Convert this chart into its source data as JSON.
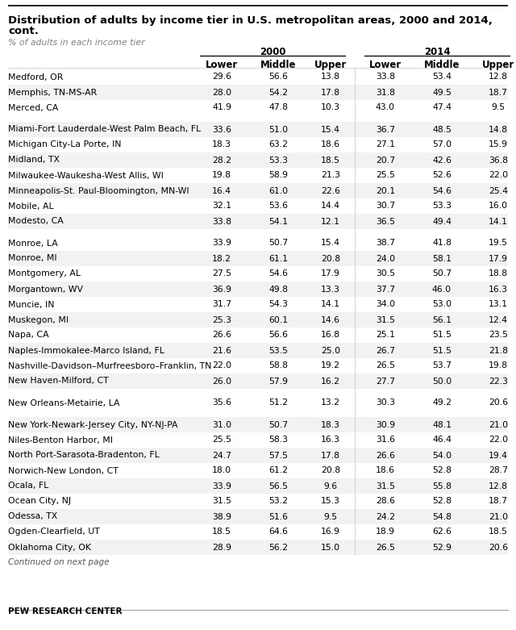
{
  "title_line1": "Distribution of adults by income tier in U.S. metropolitan areas, 2000 and 2014,",
  "title_line2": "cont.",
  "subtitle": "% of adults in each income tier",
  "col_headers_year": [
    "2000",
    "2014"
  ],
  "col_headers_sub": [
    "Lower",
    "Middle",
    "Upper",
    "Lower",
    "Middle",
    "Upper"
  ],
  "rows": [
    [
      "Medford, OR",
      29.6,
      56.6,
      13.8,
      33.8,
      53.4,
      12.8
    ],
    [
      "Memphis, TN-MS-AR",
      28.0,
      54.2,
      17.8,
      31.8,
      49.5,
      18.7
    ],
    [
      "Merced, CA",
      41.9,
      47.8,
      10.3,
      43.0,
      47.4,
      9.5
    ],
    [
      "Miami-Fort Lauderdale-West Palm Beach, FL",
      33.6,
      51.0,
      15.4,
      36.7,
      48.5,
      14.8
    ],
    [
      "Michigan City-La Porte, IN",
      18.3,
      63.2,
      18.6,
      27.1,
      57.0,
      15.9
    ],
    [
      "Midland, TX",
      28.2,
      53.3,
      18.5,
      20.7,
      42.6,
      36.8
    ],
    [
      "Milwaukee-Waukesha-West Allis, WI",
      19.8,
      58.9,
      21.3,
      25.5,
      52.6,
      22.0
    ],
    [
      "Minneapolis-St. Paul-Bloomington, MN-WI",
      16.4,
      61.0,
      22.6,
      20.1,
      54.6,
      25.4
    ],
    [
      "Mobile, AL",
      32.1,
      53.6,
      14.4,
      30.7,
      53.3,
      16.0
    ],
    [
      "Modesto, CA",
      33.8,
      54.1,
      12.1,
      36.5,
      49.4,
      14.1
    ],
    [
      "Monroe, LA",
      33.9,
      50.7,
      15.4,
      38.7,
      41.8,
      19.5
    ],
    [
      "Monroe, MI",
      18.2,
      61.1,
      20.8,
      24.0,
      58.1,
      17.9
    ],
    [
      "Montgomery, AL",
      27.5,
      54.6,
      17.9,
      30.5,
      50.7,
      18.8
    ],
    [
      "Morgantown, WV",
      36.9,
      49.8,
      13.3,
      37.7,
      46.0,
      16.3
    ],
    [
      "Muncie, IN",
      31.7,
      54.3,
      14.1,
      34.0,
      53.0,
      13.1
    ],
    [
      "Muskegon, MI",
      25.3,
      60.1,
      14.6,
      31.5,
      56.1,
      12.4
    ],
    [
      "Napa, CA",
      26.6,
      56.6,
      16.8,
      25.1,
      51.5,
      23.5
    ],
    [
      "Naples-Immokalee-Marco Island, FL",
      21.6,
      53.5,
      25.0,
      26.7,
      51.5,
      21.8
    ],
    [
      "Nashville-Davidson–Murfreesboro–Franklin, TN",
      22.0,
      58.8,
      19.2,
      26.5,
      53.7,
      19.8
    ],
    [
      "New Haven-Milford, CT",
      26.0,
      57.9,
      16.2,
      27.7,
      50.0,
      22.3
    ],
    [
      "New Orleans-Metairie, LA",
      35.6,
      51.2,
      13.2,
      30.3,
      49.2,
      20.6
    ],
    [
      "New York-Newark-Jersey City, NY-NJ-PA",
      31.0,
      50.7,
      18.3,
      30.9,
      48.1,
      21.0
    ],
    [
      "Niles-Benton Harbor, MI",
      25.5,
      58.3,
      16.3,
      31.6,
      46.4,
      22.0
    ],
    [
      "North Port-Sarasota-Bradenton, FL",
      24.7,
      57.5,
      17.8,
      26.6,
      54.0,
      19.4
    ],
    [
      "Norwich-New London, CT",
      18.0,
      61.2,
      20.8,
      18.6,
      52.8,
      28.7
    ],
    [
      "Ocala, FL",
      33.9,
      56.5,
      9.6,
      31.5,
      55.8,
      12.8
    ],
    [
      "Ocean City, NJ",
      31.5,
      53.2,
      15.3,
      28.6,
      52.8,
      18.7
    ],
    [
      "Odessa, TX",
      38.9,
      51.6,
      9.5,
      24.2,
      54.8,
      21.0
    ],
    [
      "Ogden-Clearfield, UT",
      18.5,
      64.6,
      16.9,
      18.9,
      62.6,
      18.5
    ],
    [
      "Oklahoma City, OK",
      28.9,
      56.2,
      15.0,
      26.5,
      52.9,
      20.6
    ]
  ],
  "spacer_after": [
    2,
    9,
    19,
    20
  ],
  "footer": "PEW RESEARCH CENTER",
  "continued": "Continued on next page",
  "bg_color": "#ffffff",
  "title_color": "#000000",
  "subtitle_color": "#808080",
  "row_text_color": "#000000",
  "stripe_color": "#f2f2f2",
  "header_bold_color": "#000000"
}
